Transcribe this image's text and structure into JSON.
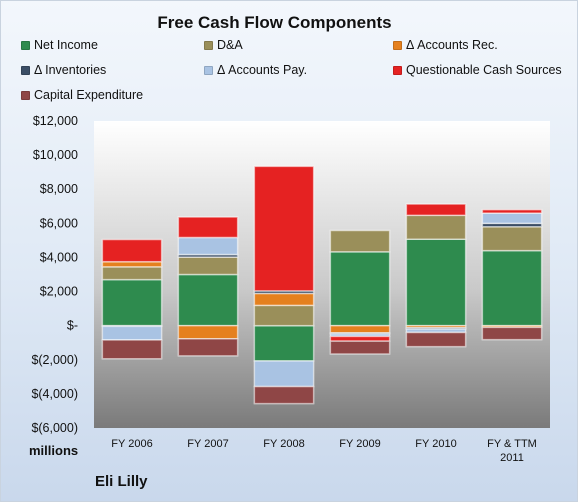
{
  "chart_data": {
    "type": "bar",
    "stacked": true,
    "title": "Free Cash Flow Components",
    "unit_label": "millions",
    "company": "Eli Lilly",
    "categories": [
      "FY 2006",
      "FY 2007",
      "FY 2008",
      "FY 2009",
      "FY 2010",
      "FY & TTM 2011"
    ],
    "ylim": [
      -6000,
      12000
    ],
    "yticks": [
      12000,
      10000,
      8000,
      6000,
      4000,
      2000,
      0,
      -2000,
      -4000,
      -6000
    ],
    "ytick_labels": [
      "$12,000",
      "$10,000",
      "$8,000",
      "$6,000",
      "$4,000",
      "$2,000",
      "$-",
      "$(2,000)",
      "$(4,000)",
      "$(6,000)"
    ],
    "legend_position": "top",
    "grid": false,
    "series": [
      {
        "name": "Net Income",
        "color": "#2e8b4e",
        "values": [
          2700,
          3000,
          -2070,
          4330,
          5070,
          4400
        ]
      },
      {
        "name": "D&A",
        "color": "#9a8f5a",
        "values": [
          750,
          1020,
          1190,
          1250,
          1400,
          1400
        ]
      },
      {
        "name": "Δ Accounts Rec.",
        "color": "#e5801e",
        "values": [
          300,
          -770,
          700,
          -420,
          -120,
          -100
        ]
      },
      {
        "name": "Δ Inventories",
        "color": "#3b4e66",
        "values": [
          -40,
          150,
          150,
          -60,
          -80,
          200
        ]
      },
      {
        "name": "Δ Accounts Pay.",
        "color": "#a9c3e3",
        "values": [
          -800,
          1000,
          -1500,
          -150,
          -200,
          600
        ]
      },
      {
        "name": "Questionable Cash Sources",
        "color": "#e52222",
        "values": [
          1300,
          1200,
          7300,
          -280,
          660,
          200
        ]
      },
      {
        "name": "Capital Expenditure",
        "color": "#8f4646",
        "values": [
          -1100,
          -1000,
          -1000,
          -750,
          -830,
          -720
        ]
      }
    ]
  }
}
